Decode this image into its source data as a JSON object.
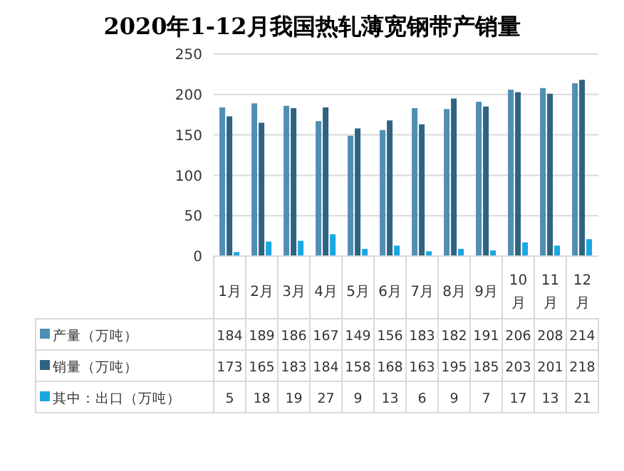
{
  "chart_data": {
    "type": "bar",
    "title": "2020年1-12月我国热轧薄宽钢带产销量",
    "categories": [
      "1月",
      "2月",
      "3月",
      "4月",
      "5月",
      "6月",
      "7月",
      "8月",
      "9月",
      "10月",
      "11月",
      "12月"
    ],
    "series": [
      {
        "name": "产量（万吨）",
        "color": "#4f8fb3",
        "values": [
          184,
          189,
          186,
          167,
          149,
          156,
          183,
          182,
          191,
          206,
          208,
          214
        ]
      },
      {
        "name": "销量（万吨）",
        "color": "#2f6381",
        "values": [
          173,
          165,
          183,
          184,
          158,
          168,
          163,
          195,
          185,
          203,
          201,
          218
        ]
      },
      {
        "name": "其中：出口（万吨）",
        "color": "#1aa7e0",
        "values": [
          5,
          18,
          19,
          27,
          9,
          13,
          6,
          9,
          7,
          17,
          13,
          21
        ]
      }
    ],
    "ylim": [
      0,
      250
    ],
    "yticks": [
      0,
      50,
      100,
      150,
      200,
      250
    ],
    "grid": "y",
    "legend": "bottom",
    "data_labels": true
  }
}
